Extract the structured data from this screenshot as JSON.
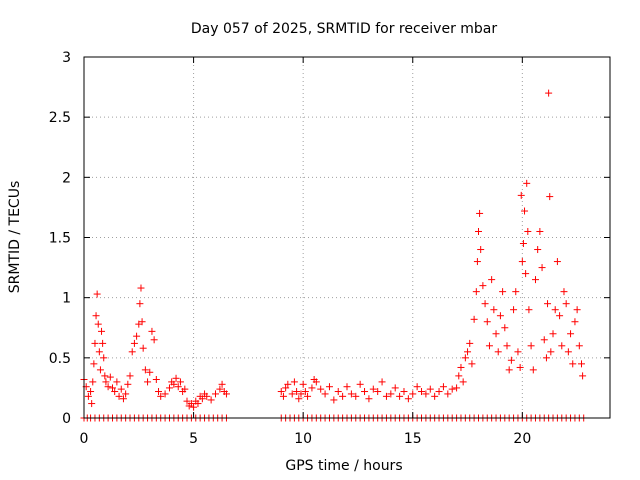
{
  "chart_data": {
    "type": "scatter",
    "title": "Day 057 of 2025, SRMTID for receiver mbar",
    "xlabel": "GPS time / hours",
    "ylabel": "SRMTID / TECUs",
    "xlim": [
      0,
      24
    ],
    "ylim": [
      0,
      3
    ],
    "xticks": [
      0,
      5,
      10,
      15,
      20
    ],
    "yticks": [
      0,
      0.5,
      1,
      1.5,
      2,
      2.5,
      3
    ],
    "xtick_labels": [
      "0",
      "5",
      "10",
      "15",
      "20"
    ],
    "ytick_labels": [
      "0",
      "0.5",
      "1",
      "1.5",
      "2",
      "2.5",
      "3"
    ],
    "grid": true,
    "marker": "+",
    "series": [
      {
        "name": "SRMTID",
        "color": "#ff0000",
        "points": [
          [
            0.0,
            0.32
          ],
          [
            0.1,
            0.26
          ],
          [
            0.2,
            0.18
          ],
          [
            0.3,
            0.22
          ],
          [
            0.35,
            0.12
          ],
          [
            0.4,
            0.3
          ],
          [
            0.45,
            0.45
          ],
          [
            0.5,
            0.62
          ],
          [
            0.55,
            0.85
          ],
          [
            0.6,
            1.03
          ],
          [
            0.65,
            0.78
          ],
          [
            0.7,
            0.55
          ],
          [
            0.75,
            0.4
          ],
          [
            0.8,
            0.72
          ],
          [
            0.85,
            0.62
          ],
          [
            0.9,
            0.5
          ],
          [
            0.95,
            0.35
          ],
          [
            1.0,
            0.3
          ],
          [
            1.1,
            0.26
          ],
          [
            1.2,
            0.34
          ],
          [
            1.3,
            0.25
          ],
          [
            1.4,
            0.22
          ],
          [
            1.5,
            0.3
          ],
          [
            1.6,
            0.18
          ],
          [
            1.7,
            0.24
          ],
          [
            1.8,
            0.16
          ],
          [
            1.9,
            0.2
          ],
          [
            2.0,
            0.28
          ],
          [
            2.1,
            0.35
          ],
          [
            2.2,
            0.55
          ],
          [
            2.3,
            0.62
          ],
          [
            2.4,
            0.68
          ],
          [
            2.5,
            0.78
          ],
          [
            2.55,
            0.95
          ],
          [
            2.6,
            1.08
          ],
          [
            2.65,
            0.8
          ],
          [
            2.7,
            0.58
          ],
          [
            2.8,
            0.4
          ],
          [
            2.9,
            0.3
          ],
          [
            3.0,
            0.38
          ],
          [
            3.1,
            0.72
          ],
          [
            3.2,
            0.65
          ],
          [
            3.3,
            0.32
          ],
          [
            3.4,
            0.22
          ],
          [
            3.5,
            0.18
          ],
          [
            3.7,
            0.2
          ],
          [
            3.9,
            0.25
          ],
          [
            4.0,
            0.3
          ],
          [
            4.1,
            0.28
          ],
          [
            4.2,
            0.33
          ],
          [
            4.3,
            0.26
          ],
          [
            4.4,
            0.3
          ],
          [
            4.5,
            0.22
          ],
          [
            4.6,
            0.24
          ],
          [
            4.7,
            0.14
          ],
          [
            4.8,
            0.1
          ],
          [
            4.9,
            0.12
          ],
          [
            5.0,
            0.09
          ],
          [
            5.1,
            0.14
          ],
          [
            5.2,
            0.12
          ],
          [
            5.3,
            0.18
          ],
          [
            5.4,
            0.16
          ],
          [
            5.5,
            0.2
          ],
          [
            5.6,
            0.18
          ],
          [
            5.8,
            0.15
          ],
          [
            6.0,
            0.2
          ],
          [
            6.2,
            0.24
          ],
          [
            6.3,
            0.28
          ],
          [
            6.4,
            0.22
          ],
          [
            6.5,
            0.2
          ],
          [
            9.0,
            0.22
          ],
          [
            9.1,
            0.18
          ],
          [
            9.2,
            0.25
          ],
          [
            9.3,
            0.28
          ],
          [
            9.5,
            0.2
          ],
          [
            9.6,
            0.3
          ],
          [
            9.7,
            0.22
          ],
          [
            9.8,
            0.16
          ],
          [
            9.9,
            0.2
          ],
          [
            10.0,
            0.28
          ],
          [
            10.1,
            0.22
          ],
          [
            10.2,
            0.18
          ],
          [
            10.4,
            0.25
          ],
          [
            10.5,
            0.32
          ],
          [
            10.6,
            0.3
          ],
          [
            10.8,
            0.24
          ],
          [
            11.0,
            0.2
          ],
          [
            11.2,
            0.26
          ],
          [
            11.4,
            0.15
          ],
          [
            11.6,
            0.22
          ],
          [
            11.8,
            0.18
          ],
          [
            12.0,
            0.26
          ],
          [
            12.2,
            0.2
          ],
          [
            12.4,
            0.18
          ],
          [
            12.6,
            0.28
          ],
          [
            12.8,
            0.22
          ],
          [
            13.0,
            0.16
          ],
          [
            13.2,
            0.24
          ],
          [
            13.4,
            0.22
          ],
          [
            13.6,
            0.3
          ],
          [
            13.8,
            0.18
          ],
          [
            14.0,
            0.2
          ],
          [
            14.2,
            0.25
          ],
          [
            14.4,
            0.18
          ],
          [
            14.6,
            0.22
          ],
          [
            14.8,
            0.16
          ],
          [
            15.0,
            0.2
          ],
          [
            15.2,
            0.26
          ],
          [
            15.4,
            0.22
          ],
          [
            15.6,
            0.2
          ],
          [
            15.8,
            0.24
          ],
          [
            16.0,
            0.18
          ],
          [
            16.2,
            0.22
          ],
          [
            16.4,
            0.26
          ],
          [
            16.6,
            0.2
          ],
          [
            16.8,
            0.24
          ],
          [
            17.0,
            0.25
          ],
          [
            17.1,
            0.35
          ],
          [
            17.2,
            0.42
          ],
          [
            17.3,
            0.3
          ],
          [
            17.4,
            0.5
          ],
          [
            17.5,
            0.55
          ],
          [
            17.6,
            0.62
          ],
          [
            17.7,
            0.45
          ],
          [
            17.8,
            0.82
          ],
          [
            17.9,
            1.05
          ],
          [
            17.95,
            1.3
          ],
          [
            18.0,
            1.55
          ],
          [
            18.05,
            1.7
          ],
          [
            18.1,
            1.4
          ],
          [
            18.2,
            1.1
          ],
          [
            18.3,
            0.95
          ],
          [
            18.4,
            0.8
          ],
          [
            18.5,
            0.6
          ],
          [
            18.6,
            1.15
          ],
          [
            18.7,
            0.9
          ],
          [
            18.8,
            0.7
          ],
          [
            18.9,
            0.55
          ],
          [
            19.0,
            0.85
          ],
          [
            19.1,
            1.05
          ],
          [
            19.2,
            0.75
          ],
          [
            19.3,
            0.6
          ],
          [
            19.4,
            0.4
          ],
          [
            19.5,
            0.48
          ],
          [
            19.6,
            0.9
          ],
          [
            19.7,
            1.05
          ],
          [
            19.8,
            0.55
          ],
          [
            19.9,
            0.42
          ],
          [
            19.95,
            1.85
          ],
          [
            20.0,
            1.3
          ],
          [
            20.05,
            1.45
          ],
          [
            20.1,
            1.72
          ],
          [
            20.15,
            1.2
          ],
          [
            20.2,
            1.95
          ],
          [
            20.25,
            1.55
          ],
          [
            20.3,
            0.9
          ],
          [
            20.4,
            0.6
          ],
          [
            20.5,
            0.4
          ],
          [
            20.6,
            1.15
          ],
          [
            20.7,
            1.4
          ],
          [
            20.8,
            1.55
          ],
          [
            20.9,
            1.25
          ],
          [
            21.0,
            0.65
          ],
          [
            21.1,
            0.5
          ],
          [
            21.15,
            0.95
          ],
          [
            21.2,
            2.7
          ],
          [
            21.25,
            1.84
          ],
          [
            21.3,
            0.55
          ],
          [
            21.4,
            0.7
          ],
          [
            21.5,
            0.9
          ],
          [
            21.6,
            1.3
          ],
          [
            21.7,
            0.85
          ],
          [
            21.8,
            0.6
          ],
          [
            21.9,
            1.05
          ],
          [
            22.0,
            0.95
          ],
          [
            22.1,
            0.55
          ],
          [
            22.2,
            0.7
          ],
          [
            22.3,
            0.45
          ],
          [
            22.4,
            0.8
          ],
          [
            22.5,
            0.9
          ],
          [
            22.6,
            0.6
          ],
          [
            22.7,
            0.45
          ],
          [
            22.75,
            0.35
          ]
        ]
      }
    ],
    "zero_markers_x": [
      0.0,
      0.15,
      0.3,
      0.5,
      0.7,
      0.9,
      1.1,
      1.3,
      1.5,
      1.7,
      1.9,
      2.1,
      2.3,
      2.5,
      2.7,
      2.9,
      3.1,
      3.3,
      3.5,
      3.7,
      3.9,
      4.1,
      4.3,
      4.5,
      4.7,
      4.9,
      5.1,
      5.3,
      5.5,
      5.7,
      5.9,
      6.1,
      6.3,
      6.5,
      9.0,
      9.2,
      9.4,
      9.6,
      9.8,
      10.0,
      10.2,
      10.4,
      10.6,
      10.8,
      11.0,
      11.2,
      11.4,
      11.6,
      11.8,
      12.0,
      12.2,
      12.4,
      12.6,
      12.8,
      13.0,
      13.2,
      13.4,
      13.6,
      13.8,
      14.0,
      14.2,
      14.4,
      14.6,
      14.8,
      15.0,
      15.2,
      15.4,
      15.6,
      15.8,
      16.0,
      16.2,
      16.4,
      16.6,
      16.8,
      17.0,
      17.2,
      17.4,
      17.6,
      17.8,
      18.0,
      18.2,
      18.4,
      18.6,
      18.8,
      19.0,
      19.2,
      19.4,
      19.6,
      19.8,
      20.0,
      20.2,
      20.4,
      20.6,
      20.8,
      21.0,
      21.2,
      21.4,
      21.6,
      21.8,
      22.0,
      22.2,
      22.4,
      22.6,
      22.8
    ]
  }
}
